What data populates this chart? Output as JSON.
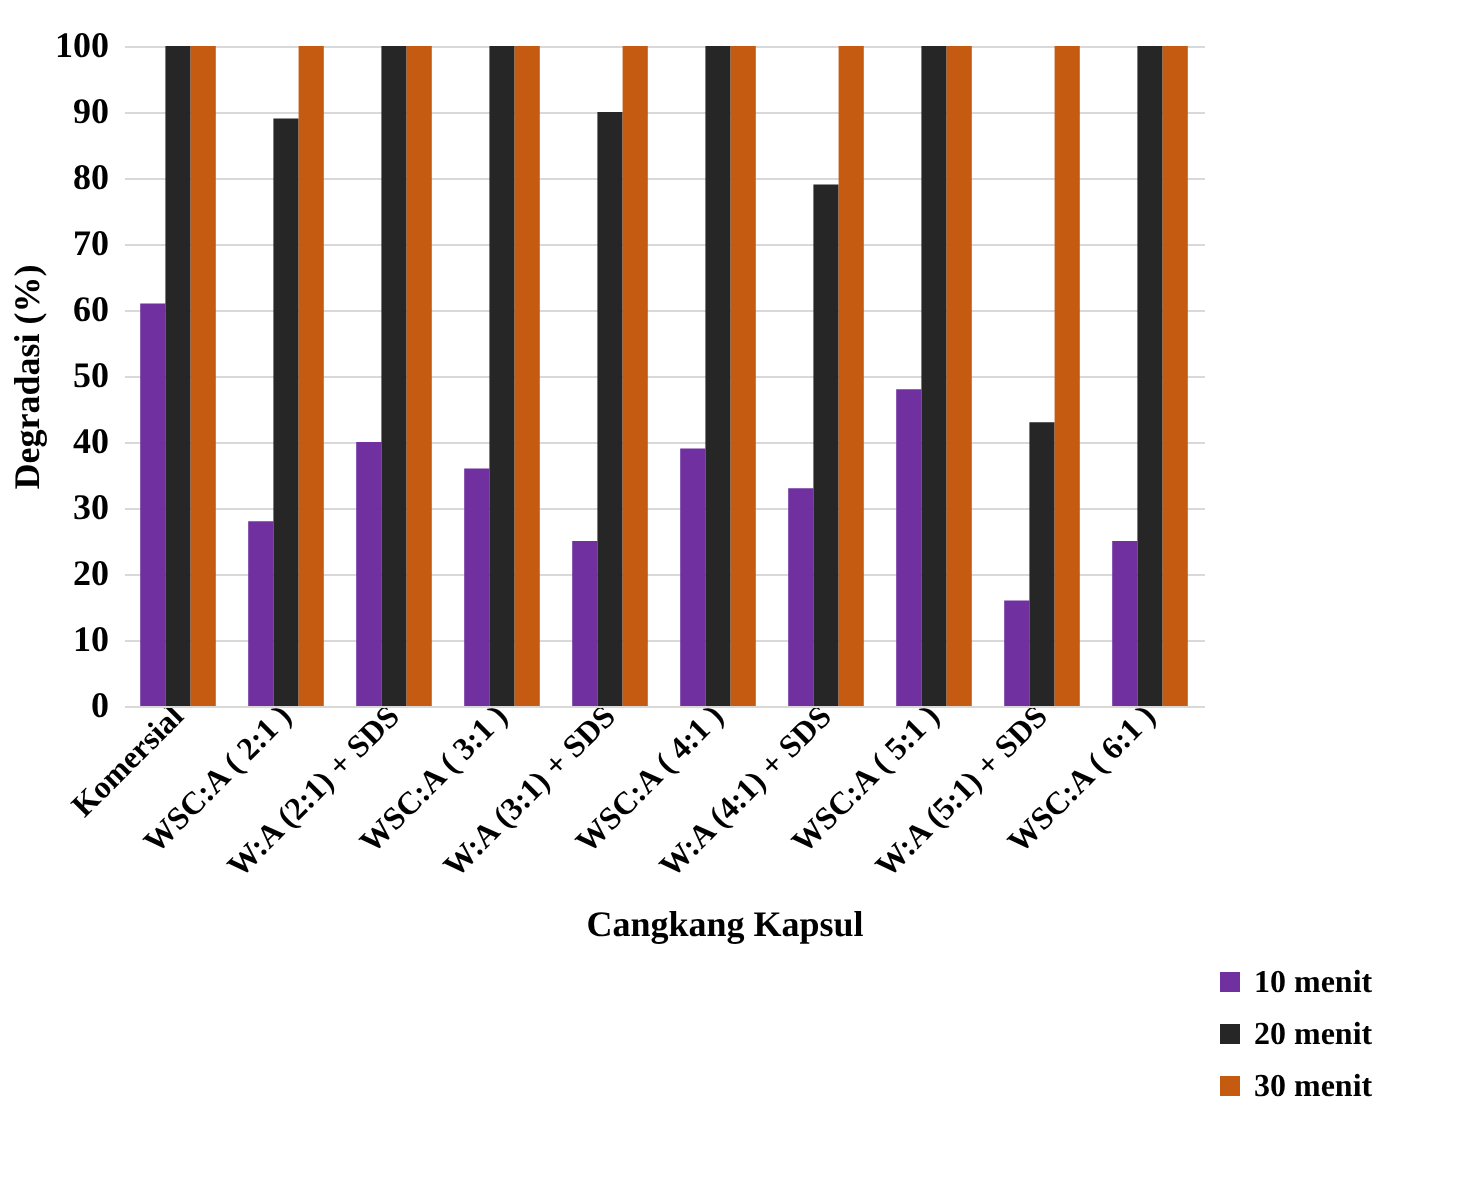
{
  "chart_data": {
    "type": "bar",
    "xlabel": "Cangkang Kapsul",
    "ylabel": "Degradasi (%)",
    "categories": [
      "Komersial",
      "WSC:A ( 2:1 )",
      "W:A (2:1) + SDS",
      "WSC:A ( 3:1 )",
      "W:A (3:1) + SDS",
      "WSC:A ( 4:1 )",
      "W:A (4:1) + SDS",
      "WSC:A ( 5:1 )",
      "W:A (5:1) + SDS",
      "WSC:A ( 6:1 )"
    ],
    "series": [
      {
        "name": "10 menit",
        "color": "#7030a0",
        "values": [
          61,
          28,
          40,
          36,
          25,
          39,
          33,
          48,
          16,
          25
        ]
      },
      {
        "name": "20 menit",
        "color": "#262626",
        "values": [
          100,
          89,
          100,
          100,
          90,
          100,
          79,
          100,
          43,
          100
        ]
      },
      {
        "name": "30 menit",
        "color": "#c55a11",
        "values": [
          100,
          100,
          100,
          100,
          100,
          100,
          100,
          100,
          100,
          100
        ]
      }
    ],
    "ylim": [
      0,
      100
    ],
    "yticks": [
      0,
      10,
      20,
      30,
      40,
      50,
      60,
      70,
      80,
      90,
      100
    ],
    "grid": "y",
    "legend": "bottom right"
  }
}
